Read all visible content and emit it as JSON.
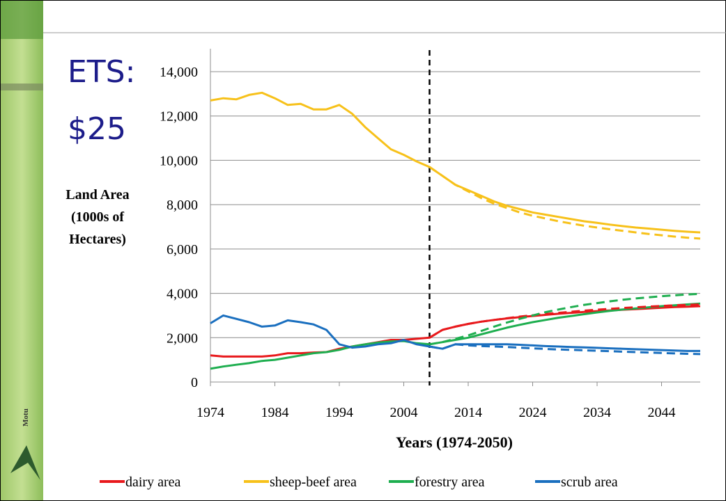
{
  "title": [
    "ETS:",
    "$25"
  ],
  "logo": "Motu",
  "chart_data": {
    "type": "line",
    "ylabel": [
      "Land Area",
      "(1000s of",
      "Hectares)"
    ],
    "xlabel": "Years (1974-2050)",
    "x": [
      1974,
      1976,
      1978,
      1980,
      1982,
      1984,
      1986,
      1988,
      1990,
      1992,
      1994,
      1996,
      1998,
      2000,
      2002,
      2004,
      2006,
      2008,
      2010,
      2012,
      2014,
      2016,
      2018,
      2020,
      2022,
      2024,
      2026,
      2028,
      2030,
      2032,
      2034,
      2036,
      2038,
      2040,
      2042,
      2044,
      2046,
      2048,
      2050
    ],
    "xlim": [
      1974,
      2050
    ],
    "xticks": [
      1974,
      1984,
      1994,
      2004,
      2014,
      2024,
      2034,
      2044
    ],
    "ylim": [
      0,
      14000
    ],
    "yticks": [
      0,
      {
        "value": 2000,
        "label": "2,000"
      },
      {
        "value": 4000,
        "label": "4,000"
      },
      {
        "value": 6000,
        "label": "6,000"
      },
      {
        "value": 8000,
        "label": "8,000"
      },
      {
        "value": 10000,
        "label": "10,000"
      },
      {
        "value": 12000,
        "label": "12,000"
      },
      {
        "value": 14000,
        "label": "14,000"
      }
    ],
    "grid": true,
    "vline": 2008,
    "series": [
      {
        "name": "dairy area",
        "color": "#e8191c",
        "values": [
          1200,
          1150,
          1150,
          1150,
          1150,
          1200,
          1300,
          1300,
          1330,
          1350,
          1500,
          1600,
          1700,
          1800,
          1900,
          1900,
          1950,
          2000,
          2350,
          2500,
          2620,
          2720,
          2800,
          2870,
          2930,
          2980,
          3030,
          3080,
          3120,
          3160,
          3200,
          3230,
          3260,
          3290,
          3320,
          3350,
          3380,
          3400,
          3420
        ]
      },
      {
        "name": "sheep-beef area",
        "color": "#f7c11a",
        "values": [
          12700,
          12800,
          12750,
          12950,
          13050,
          12800,
          12500,
          12550,
          12300,
          12300,
          12500,
          12100,
          11500,
          11000,
          10500,
          10250,
          9950,
          9700,
          9300,
          8900,
          8650,
          8400,
          8150,
          7950,
          7800,
          7650,
          7550,
          7450,
          7350,
          7250,
          7180,
          7100,
          7030,
          6970,
          6920,
          6870,
          6820,
          6780,
          6750
        ]
      },
      {
        "name": "forestry area",
        "color": "#1eae4f",
        "values": [
          600,
          700,
          780,
          850,
          950,
          1000,
          1100,
          1200,
          1300,
          1350,
          1450,
          1600,
          1700,
          1780,
          1830,
          1850,
          1750,
          1700,
          1800,
          1900,
          2000,
          2150,
          2300,
          2450,
          2580,
          2700,
          2800,
          2900,
          2980,
          3060,
          3140,
          3210,
          3270,
          3320,
          3370,
          3420,
          3460,
          3500,
          3540
        ]
      },
      {
        "name": "scrub area",
        "color": "#1a6fbf",
        "values": [
          2650,
          3000,
          2850,
          2700,
          2500,
          2550,
          2780,
          2700,
          2600,
          2350,
          1700,
          1550,
          1600,
          1700,
          1750,
          1900,
          1700,
          1600,
          1500,
          1700,
          1700,
          1700,
          1700,
          1700,
          1680,
          1650,
          1620,
          1600,
          1580,
          1560,
          1540,
          1520,
          1500,
          1480,
          1460,
          1440,
          1420,
          1400,
          1400
        ]
      },
      {
        "color": "#e8191c",
        "dash": true,
        "values": [
          null,
          null,
          null,
          null,
          null,
          null,
          null,
          null,
          null,
          null,
          null,
          null,
          null,
          null,
          null,
          null,
          null,
          2000,
          2350,
          2500,
          2620,
          2720,
          2800,
          2880,
          2950,
          3010,
          3070,
          3120,
          3170,
          3220,
          3260,
          3300,
          3340,
          3370,
          3400,
          3430,
          3460,
          3480,
          3500
        ]
      },
      {
        "color": "#f7c11a",
        "dash": true,
        "values": [
          null,
          null,
          null,
          null,
          null,
          null,
          null,
          null,
          null,
          null,
          null,
          null,
          null,
          null,
          null,
          null,
          null,
          9700,
          9300,
          8900,
          8600,
          8300,
          8050,
          7850,
          7650,
          7500,
          7380,
          7250,
          7150,
          7050,
          6970,
          6890,
          6820,
          6750,
          6680,
          6620,
          6560,
          6510,
          6470
        ]
      },
      {
        "color": "#1eae4f",
        "dash": true,
        "values": [
          null,
          null,
          null,
          null,
          null,
          null,
          null,
          null,
          null,
          null,
          null,
          null,
          null,
          null,
          null,
          null,
          null,
          1700,
          1800,
          1950,
          2100,
          2300,
          2500,
          2680,
          2850,
          3000,
          3150,
          3270,
          3380,
          3480,
          3560,
          3640,
          3710,
          3770,
          3820,
          3870,
          3910,
          3950,
          3980
        ]
      },
      {
        "color": "#1a6fbf",
        "dash": true,
        "values": [
          null,
          null,
          null,
          null,
          null,
          null,
          null,
          null,
          null,
          null,
          null,
          null,
          null,
          null,
          null,
          null,
          null,
          1600,
          1500,
          1700,
          1650,
          1620,
          1600,
          1580,
          1550,
          1520,
          1490,
          1470,
          1450,
          1430,
          1410,
          1390,
          1370,
          1350,
          1330,
          1310,
          1290,
          1270,
          1260
        ]
      }
    ]
  }
}
